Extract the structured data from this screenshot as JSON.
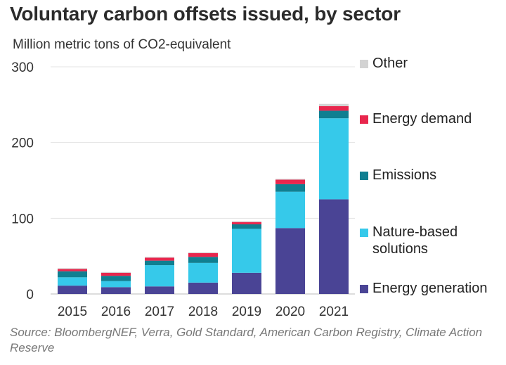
{
  "colors": {
    "energy_generation": "#4a4495",
    "nature_based": "#36c9ea",
    "emissions": "#0f7f91",
    "energy_demand": "#e8264d",
    "other": "#d3d3d3",
    "grid": "#e3e3e3"
  },
  "chart_data": {
    "type": "bar",
    "stacked": true,
    "title": "Voluntary carbon offsets issued, by sector",
    "subtitle": "Million metric tons of CO2-equivalent",
    "source": "Source: BloombergNEF, Verra, Gold Standard, American Carbon Registry, Climate Action Reserve",
    "categories": [
      "2015",
      "2016",
      "2017",
      "2018",
      "2019",
      "2020",
      "2021"
    ],
    "ylim": [
      0,
      300
    ],
    "yticks": [
      "0",
      "100",
      "200",
      "300"
    ],
    "grid": true,
    "legend_position": "right",
    "series": [
      {
        "name": "Energy generation",
        "color_key": "energy_generation",
        "values": [
          11,
          9,
          10,
          15,
          28,
          87,
          125
        ]
      },
      {
        "name": "Nature-based\nsolutions",
        "color_key": "nature_based",
        "values": [
          11,
          8,
          28,
          26,
          58,
          48,
          107
        ]
      },
      {
        "name": "Emissions",
        "color_key": "emissions",
        "values": [
          8,
          7,
          6,
          8,
          6,
          10,
          10
        ]
      },
      {
        "name": "Energy demand",
        "color_key": "energy_demand",
        "values": [
          3,
          4,
          4,
          5,
          3,
          6,
          6
        ]
      },
      {
        "name": "Other",
        "color_key": "other",
        "values": [
          1,
          1,
          1,
          1,
          1,
          1,
          3
        ]
      }
    ]
  }
}
